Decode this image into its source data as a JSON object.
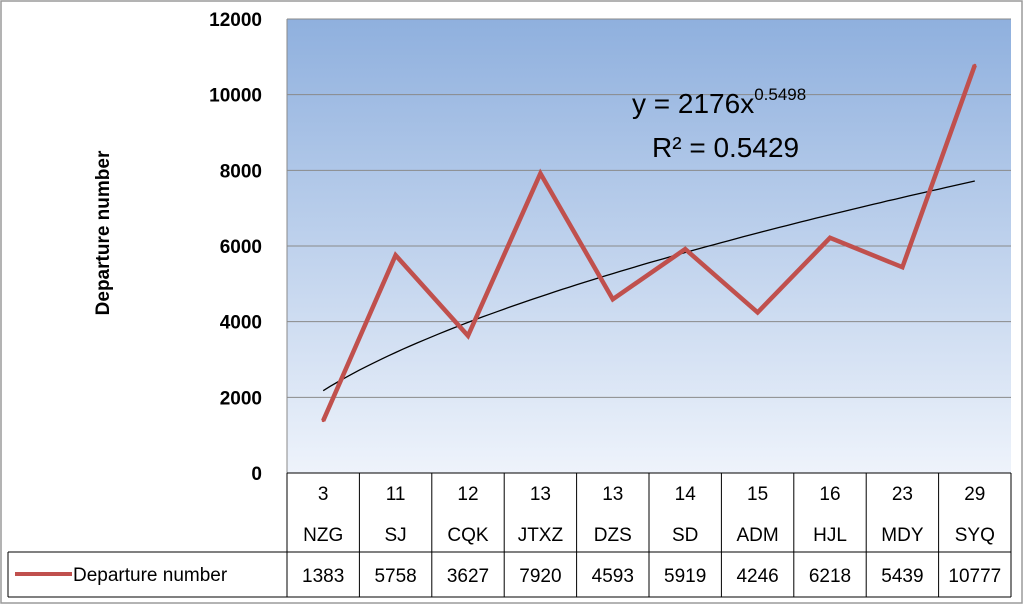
{
  "chart_data": {
    "type": "line",
    "ylabel": "Departure number",
    "ylim": [
      0,
      12000
    ],
    "y_ticks": [
      0,
      2000,
      4000,
      6000,
      8000,
      10000,
      12000
    ],
    "grid": true,
    "categories": [
      {
        "number": "3",
        "code": "NZG"
      },
      {
        "number": "11",
        "code": "SJ"
      },
      {
        "number": "12",
        "code": "CQK"
      },
      {
        "number": "13",
        "code": "JTXZ"
      },
      {
        "number": "13",
        "code": "DZS"
      },
      {
        "number": "14",
        "code": "SD"
      },
      {
        "number": "15",
        "code": "ADM"
      },
      {
        "number": "16",
        "code": "HJL"
      },
      {
        "number": "23",
        "code": "MDY"
      },
      {
        "number": "29",
        "code": "SYQ"
      }
    ],
    "series": [
      {
        "name": "Departure number",
        "values": [
          1383,
          5758,
          3627,
          7920,
          4593,
          5919,
          4246,
          6218,
          5439,
          10777
        ],
        "color": "#c0504d"
      }
    ],
    "trendline": {
      "type": "power",
      "coefficient": 2176,
      "exponent": 0.5498,
      "equation_prefix": "y = 2176x",
      "equation_exponent": "0.5498",
      "r_squared_label": "R² = 0.5429",
      "color": "#000000"
    },
    "legend_placement": "bottom data table",
    "plot_gradient": [
      "#8fb0de",
      "#eef3fb"
    ]
  }
}
